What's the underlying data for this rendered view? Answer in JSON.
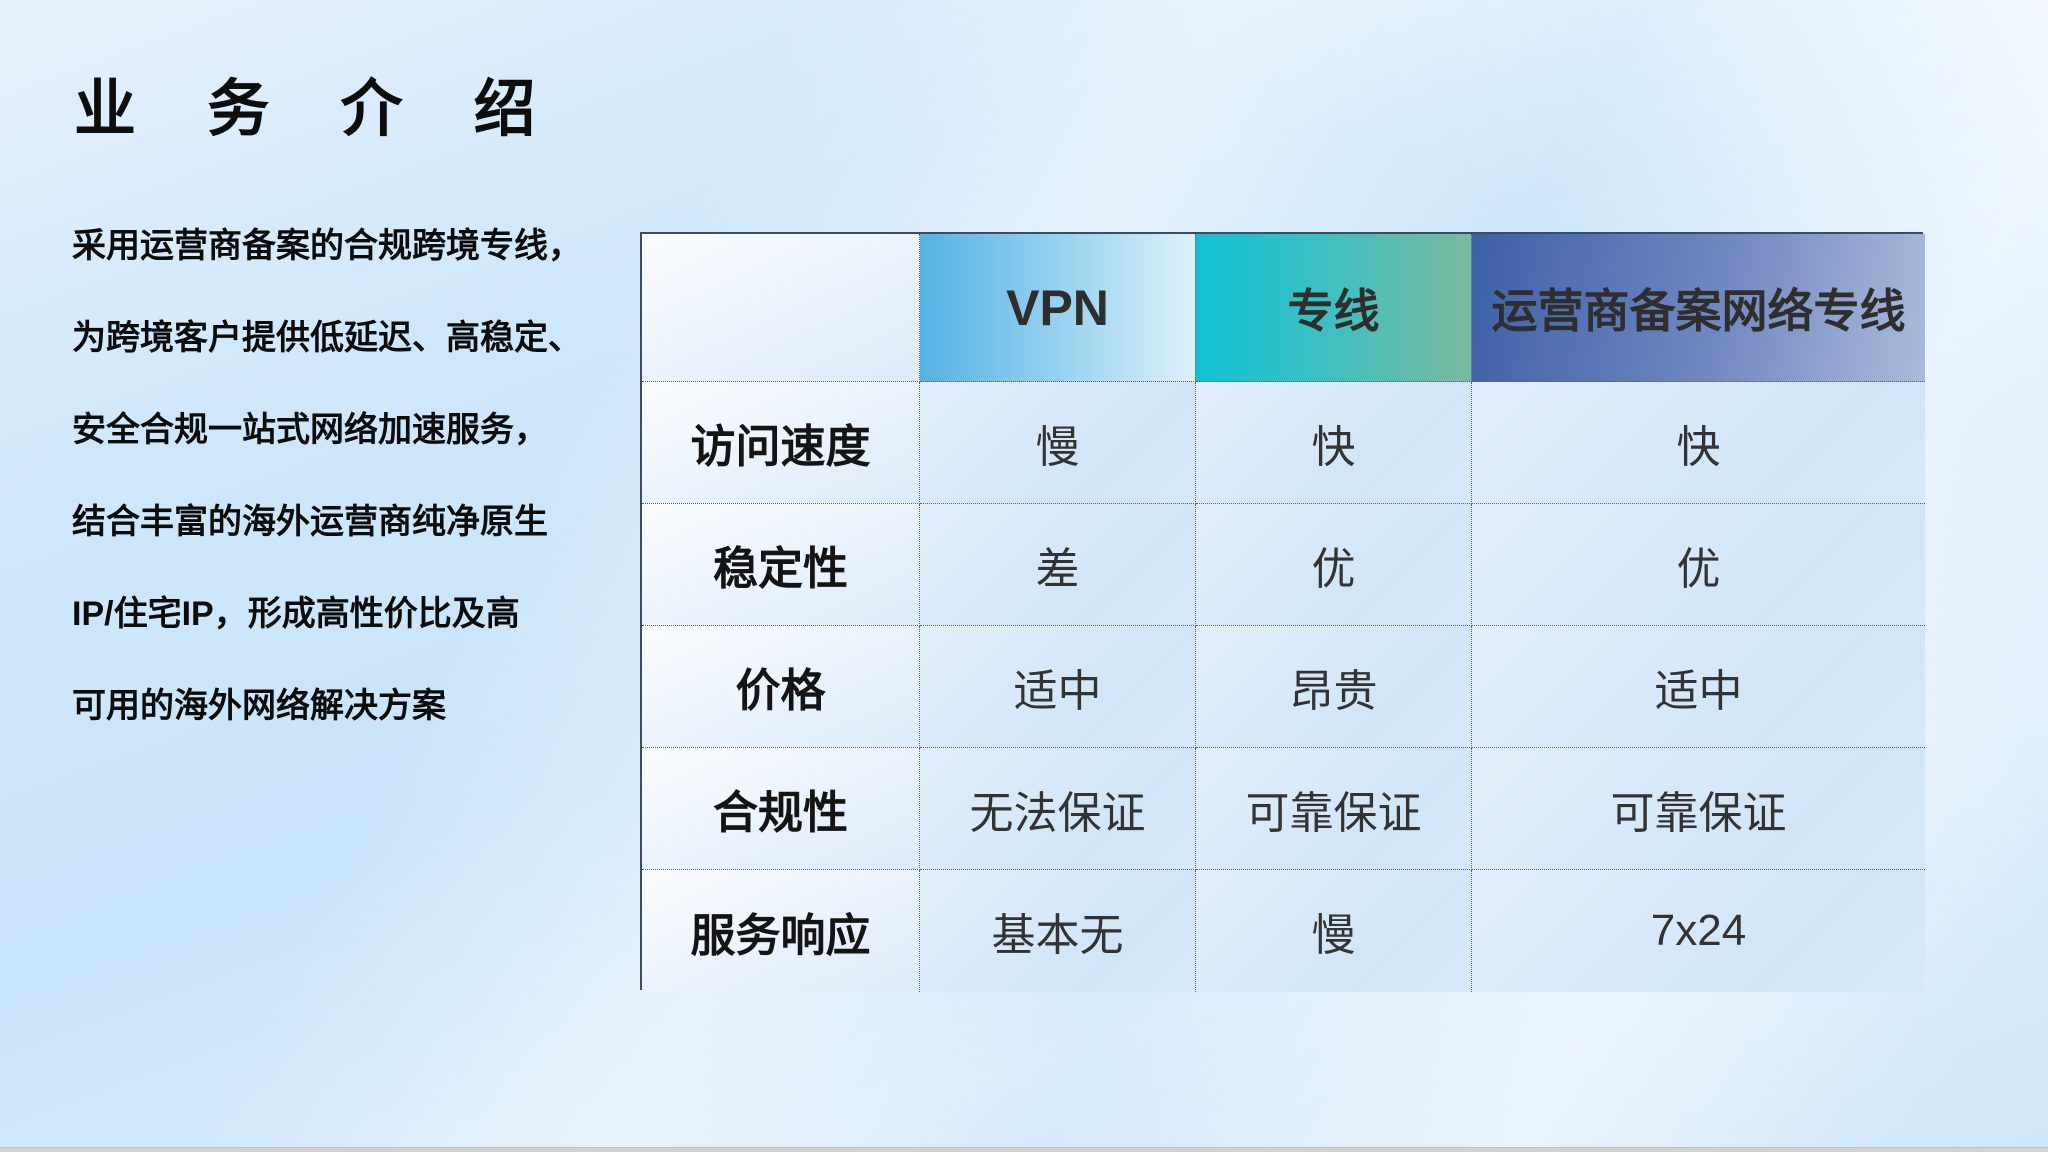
{
  "slide": {
    "title": "业 务 介 绍",
    "description_lines": [
      "采用运营商备案的合规跨境专线，",
      "为跨境客户提供低延迟、高稳定、",
      "安全合规一站式网络加速服务，",
      "结合丰富的海外运营商纯净原生",
      "IP/住宅IP，形成高性价比及高",
      "可用的海外网络解决方案"
    ],
    "table": {
      "corner": "",
      "columns": [
        "VPN",
        "专线",
        "运营商备案网络专线"
      ],
      "row_headers": [
        "访问速度",
        "稳定性",
        "价格",
        "合规性",
        "服务响应"
      ],
      "rows": [
        {
          "label": "访问速度",
          "values": [
            "慢",
            "快",
            "快"
          ]
        },
        {
          "label": "稳定性",
          "values": [
            "差",
            "优",
            "优"
          ]
        },
        {
          "label": "价格",
          "values": [
            "适中",
            "昂贵",
            "适中"
          ]
        },
        {
          "label": "合规性",
          "values": [
            "无法保证",
            "可靠保证",
            "可靠保证"
          ]
        },
        {
          "label": "服务响应",
          "values": [
            "基本无",
            "慢",
            "7x24"
          ]
        }
      ]
    },
    "colors": {
      "header_vpn_gradient": [
        "#54b2e3",
        "#def1fb"
      ],
      "header_line_gradient": [
        "#10c2d6",
        "#7cb99e"
      ],
      "header_carrier_gradient": [
        "#3d60a9",
        "#a9bcdc"
      ],
      "table_outer_border": "#3b4d61",
      "cell_background": "#d3e7f9",
      "slide_background": "#cde6fa",
      "title_color": "#0d0d0d",
      "cell_text_color": "#333333"
    }
  }
}
